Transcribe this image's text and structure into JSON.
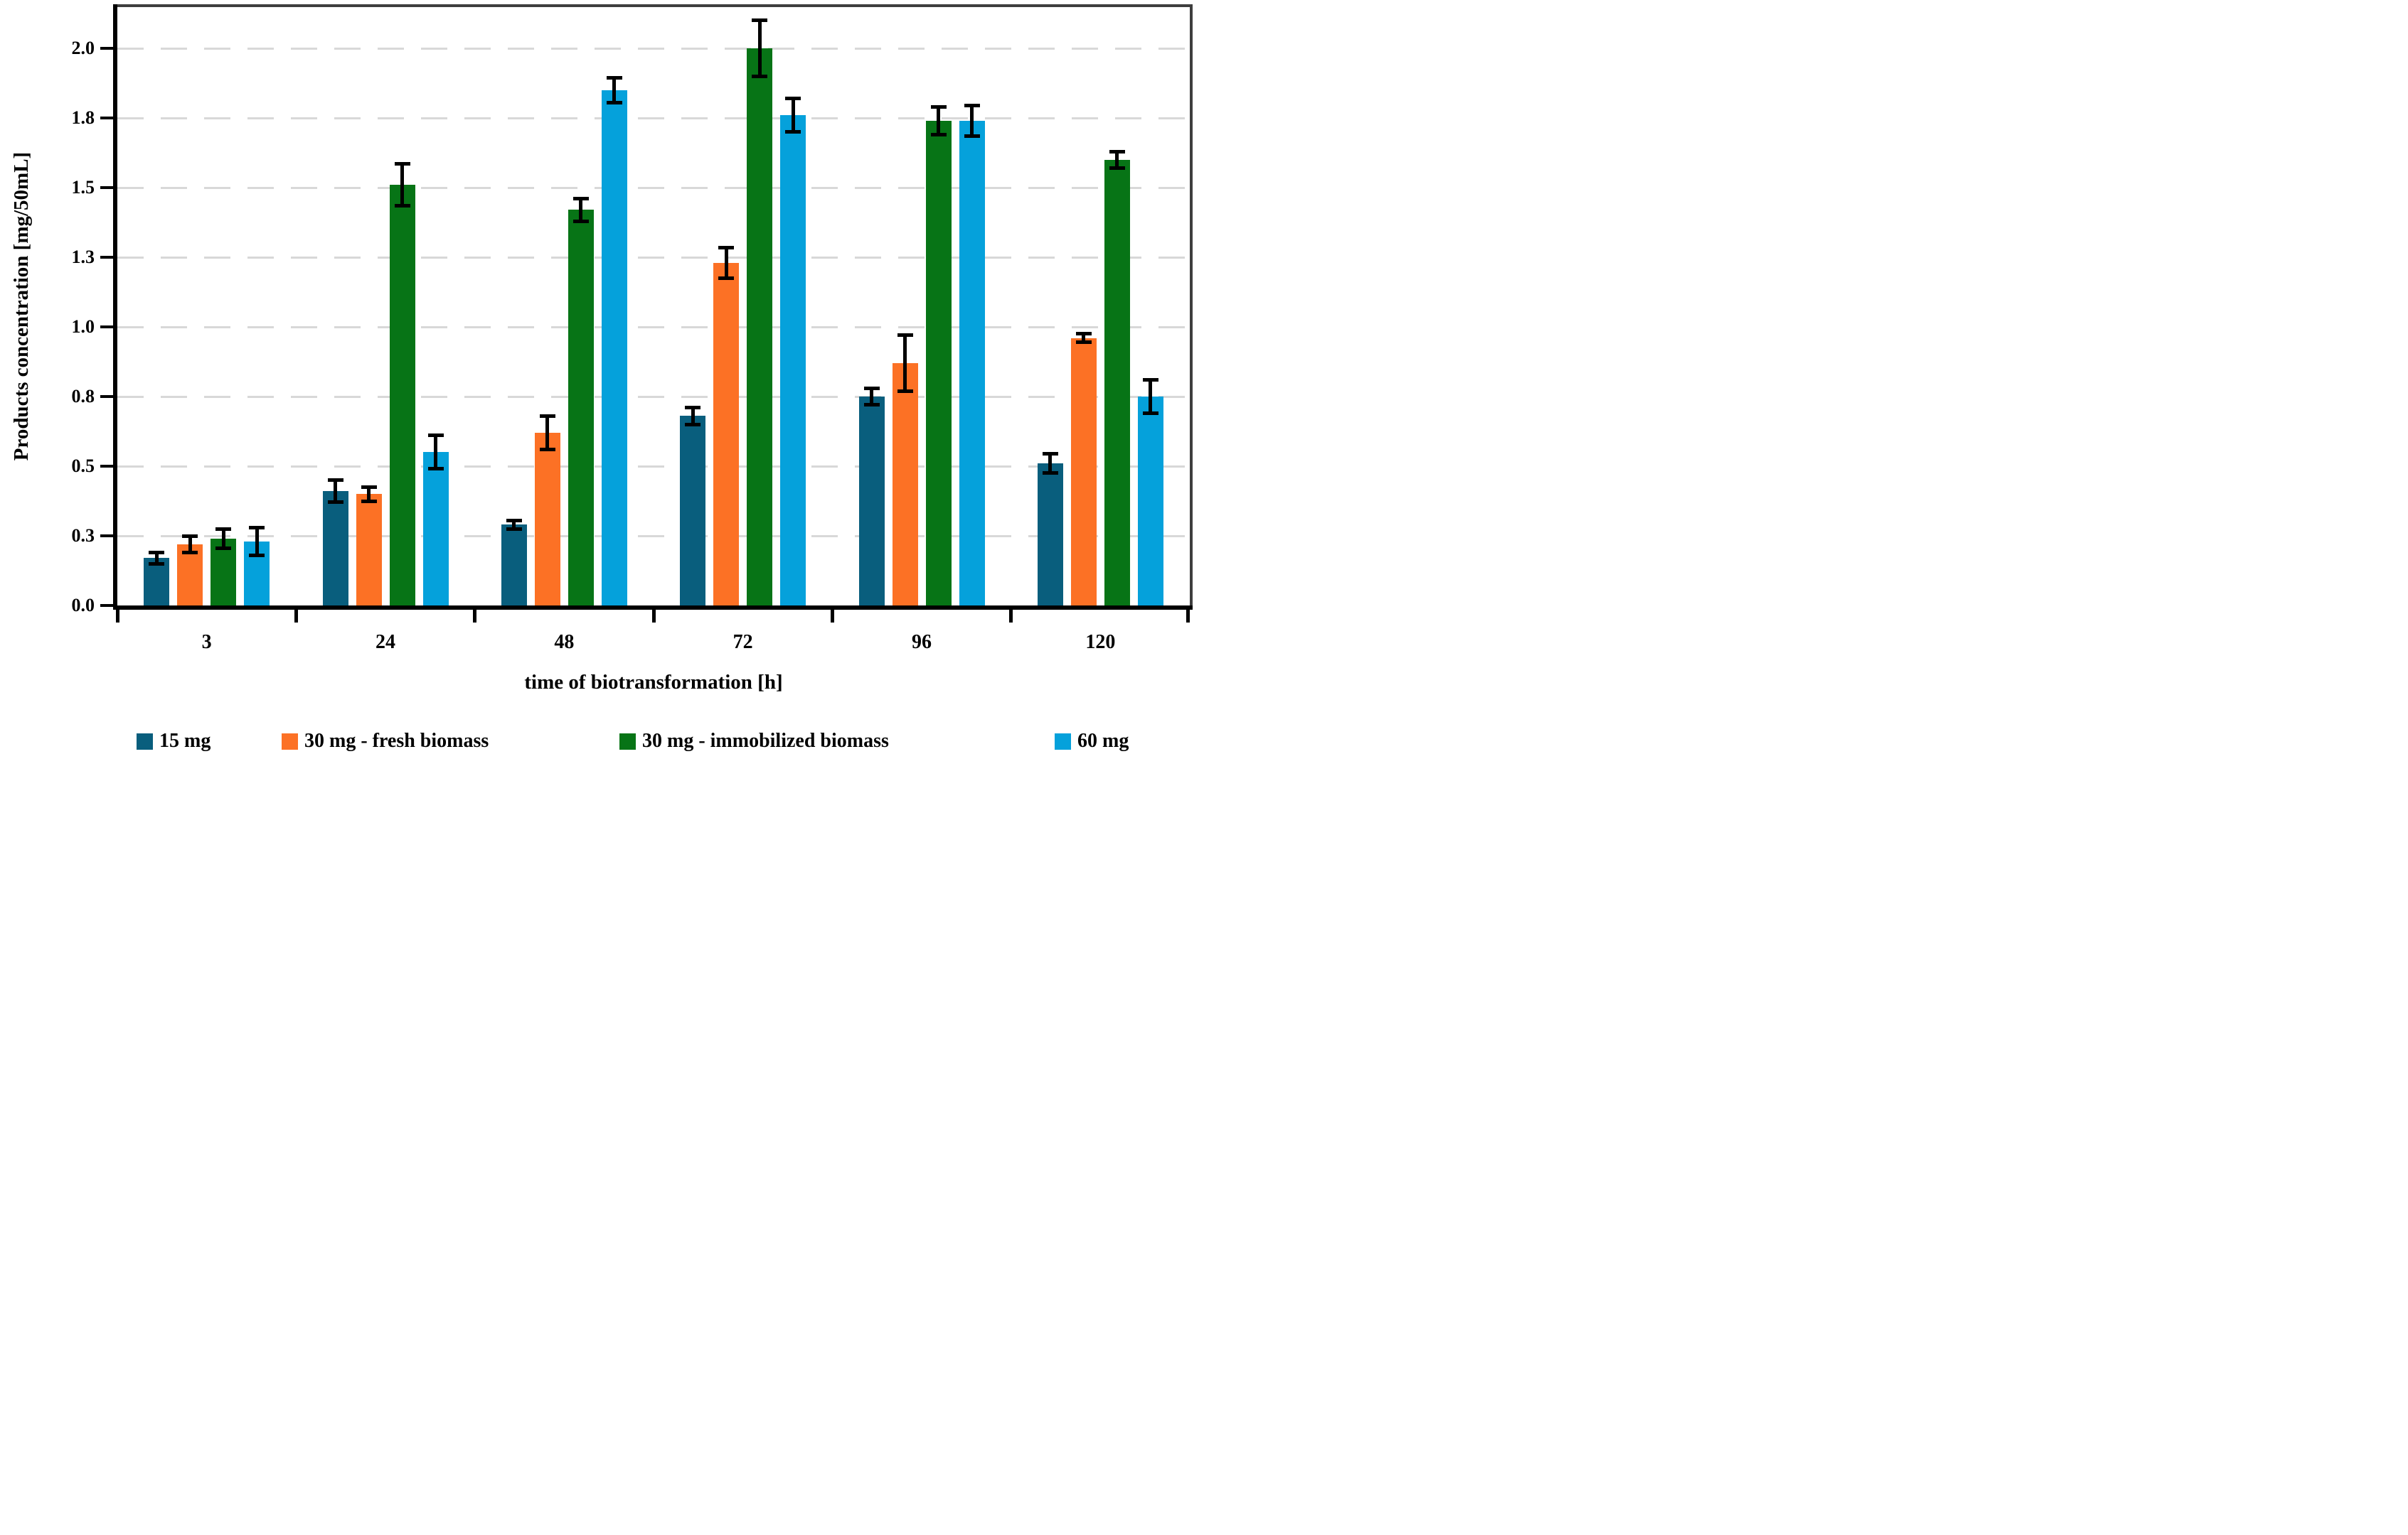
{
  "chart_data": {
    "type": "bar",
    "title": "",
    "xlabel": "time of biotransformation [h]",
    "ylabel": "Products concentration [mg/50mL]",
    "categories": [
      "3",
      "24",
      "48",
      "72",
      "96",
      "120"
    ],
    "series": [
      {
        "name": "15 mg",
        "color": "#095E7D",
        "values": [
          0.17,
          0.41,
          0.29,
          0.68,
          0.75,
          0.51
        ],
        "errors": [
          0.02,
          0.04,
          0.015,
          0.03,
          0.03,
          0.035
        ]
      },
      {
        "name": "30 mg - fresh biomass",
        "color": "#FC7125",
        "values": [
          0.22,
          0.4,
          0.62,
          1.23,
          0.87,
          0.96
        ],
        "errors": [
          0.03,
          0.025,
          0.06,
          0.055,
          0.1,
          0.015
        ]
      },
      {
        "name": "30 mg - immobilized biomass",
        "color": "#077416",
        "values": [
          0.24,
          1.51,
          1.42,
          2.0,
          1.74,
          1.6
        ],
        "errors": [
          0.035,
          0.075,
          0.04,
          0.1,
          0.05,
          0.03
        ]
      },
      {
        "name": "60 mg",
        "color": "#05A1DB",
        "values": [
          0.23,
          0.55,
          1.85,
          1.76,
          1.74,
          0.75
        ],
        "errors": [
          0.05,
          0.06,
          0.045,
          0.06,
          0.055,
          0.06
        ]
      }
    ],
    "y_ticks": [
      {
        "v": 0.0,
        "label": "0.0"
      },
      {
        "v": 0.25,
        "label": "0.3"
      },
      {
        "v": 0.5,
        "label": "0.5"
      },
      {
        "v": 0.75,
        "label": "0.8"
      },
      {
        "v": 1.0,
        "label": "1.0"
      },
      {
        "v": 1.25,
        "label": "1.3"
      },
      {
        "v": 1.5,
        "label": "1.5"
      },
      {
        "v": 1.75,
        "label": "1.8"
      },
      {
        "v": 2.0,
        "label": "2.0"
      }
    ],
    "ylim": [
      0,
      2.15
    ],
    "grid": "horizontal-dashed",
    "legend_position": "bottom",
    "error_bars": true,
    "colors_note": {
      "gridline": "#D8D8D8",
      "axis": "#000000",
      "plot_border": "#3E3E3E"
    }
  }
}
